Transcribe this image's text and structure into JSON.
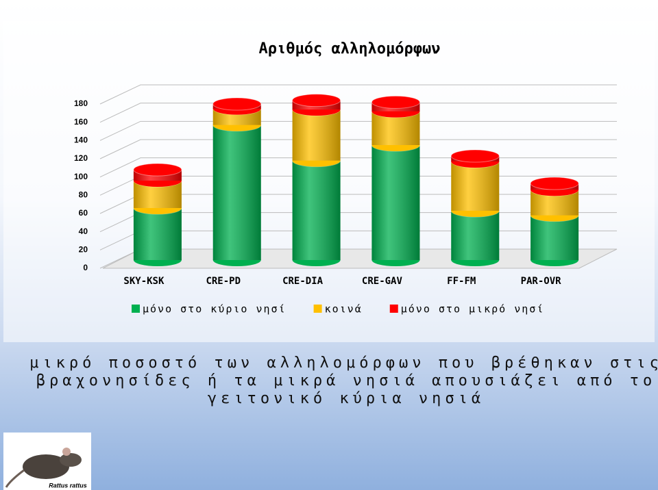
{
  "chart_data": {
    "type": "bar3d_stacked",
    "title": "Αριθμός αλληλομόρφων",
    "categories": [
      "SKY-KSK",
      "CRE-PD",
      "CRE-DIA",
      "CRE-GAV",
      "FF-FM",
      "PAR-OVR"
    ],
    "series": [
      {
        "name": "μόνο στο κύριο νησί",
        "color": "#00b050",
        "values": [
          57,
          148,
          109,
          126,
          54,
          49
        ]
      },
      {
        "name": "κοινά",
        "color": "#ffc000",
        "values": [
          30,
          18,
          56,
          37,
          54,
          28
        ]
      },
      {
        "name": "μόνο στο μικρό νησί",
        "color": "#ff0000",
        "values": [
          12,
          5,
          10,
          10,
          6,
          7
        ]
      }
    ],
    "ylim": [
      0,
      180
    ],
    "yticks": [
      0,
      20,
      40,
      60,
      80,
      100,
      120,
      140,
      160,
      180
    ],
    "grid": true,
    "legend": "bottom"
  },
  "caption": [
    "μικρό ποσοστό των αλληλομόρφων που βρέθηκαν στις",
    "βραχονησίδες ή τα μικρά νησιά απουσιάζει από το",
    "γειτονικό κύρια νησιά"
  ],
  "image_label": "Rattus rattus"
}
